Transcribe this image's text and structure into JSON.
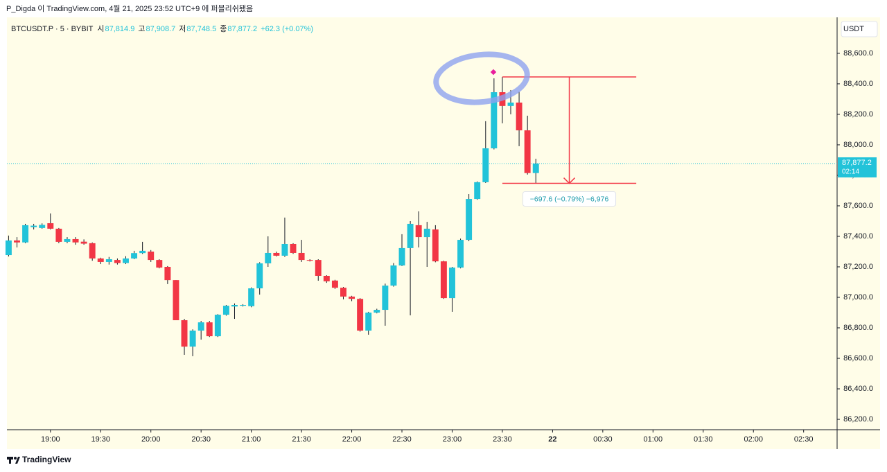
{
  "caption": "P_Digda 이 TradingView.com, 4월 21, 2025 23:52 UTC+9 에 퍼블리쉬됐음",
  "footer": "TradingView",
  "chart_data": {
    "type": "candlestick",
    "symbol_line": "BTCUSDT.P · 5 · BYBIT",
    "ohlc_header": [
      {
        "label": "시",
        "value": "87,814.9"
      },
      {
        "label": "고",
        "value": "87,908.7"
      },
      {
        "label": "저",
        "value": "87,748.5"
      },
      {
        "label": "종",
        "value": "87,877.2"
      }
    ],
    "change": "+62.3 (+0.07%)",
    "currency": "USDT",
    "up_color": "#22c3d9",
    "down_color": "#f23645",
    "x": [
      "18:35",
      "18:40",
      "18:45",
      "18:50",
      "18:55",
      "19:00",
      "19:05",
      "19:10",
      "19:15",
      "19:20",
      "19:25",
      "19:30",
      "19:35",
      "19:40",
      "19:45",
      "19:50",
      "19:55",
      "20:00",
      "20:05",
      "20:10",
      "20:15",
      "20:20",
      "20:25",
      "20:30",
      "20:35",
      "20:40",
      "20:45",
      "20:50",
      "20:55",
      "21:00",
      "21:05",
      "21:10",
      "21:15",
      "21:20",
      "21:25",
      "21:30",
      "21:35",
      "21:40",
      "21:45",
      "21:50",
      "21:55",
      "22:00",
      "22:05",
      "22:10",
      "22:15",
      "22:20",
      "22:25",
      "22:30",
      "22:35",
      "22:40",
      "22:45",
      "22:50",
      "22:55",
      "23:00",
      "23:05",
      "23:10",
      "23:15",
      "23:20",
      "23:25",
      "23:30",
      "23:35",
      "23:40",
      "23:45",
      "23:50"
    ],
    "open": [
      87277,
      87373,
      87360,
      87460,
      87455,
      87486,
      87450,
      87364,
      87382,
      87365,
      87355,
      87255,
      87232,
      87245,
      87225,
      87255,
      87290,
      87300,
      87245,
      87200,
      87113,
      86850,
      86677,
      86782,
      86836,
      86745,
      86886,
      86940,
      86945,
      86942,
      87059,
      87223,
      87291,
      87273,
      87350,
      87291,
      87245,
      87245,
      87141,
      87110,
      87063,
      87005,
      86990,
      86782,
      86900,
      86918,
      87077,
      87209,
      87323,
      87473,
      87395,
      87445,
      87236,
      86995,
      87195,
      87377,
      87645,
      87755,
      87977,
      88345,
      88255,
      88277,
      88095,
      87814.9
    ],
    "high": [
      87405,
      87395,
      87482,
      87482,
      87485,
      87550,
      87455,
      87395,
      87395,
      87380,
      87360,
      87260,
      87265,
      87255,
      87270,
      87305,
      87364,
      87310,
      87250,
      87205,
      87113,
      86859,
      86790,
      86845,
      86845,
      86890,
      86950,
      86960,
      86955,
      87065,
      87230,
      87400,
      87300,
      87523,
      87355,
      87377,
      87250,
      87250,
      87145,
      87115,
      87068,
      87010,
      86995,
      86905,
      86925,
      87090,
      87225,
      87414,
      87500,
      87564,
      87495,
      87473,
      87240,
      87200,
      87385,
      87677,
      87760,
      88155,
      88436,
      88445,
      88359,
      88350,
      88191,
      87908.7
    ],
    "low": [
      87268,
      87327,
      87355,
      87445,
      87450,
      87445,
      87355,
      87355,
      87345,
      87345,
      87240,
      87218,
      87215,
      87215,
      87218,
      87250,
      87285,
      87232,
      87190,
      87087,
      86850,
      86623,
      86614,
      86723,
      86740,
      86740,
      86880,
      86859,
      86940,
      86935,
      87018,
      87200,
      87268,
      87265,
      87285,
      87232,
      87235,
      87109,
      87095,
      87055,
      86987,
      86975,
      86775,
      86755,
      86895,
      86814,
      87070,
      87205,
      86882,
      87327,
      87200,
      87230,
      86990,
      86905,
      87190,
      87368,
      87640,
      87750,
      87970,
      88141,
      88200,
      87991,
      87805,
      87748.5
    ],
    "close": [
      87373,
      87360,
      87473,
      87470,
      87475,
      87450,
      87364,
      87382,
      87360,
      87352,
      87255,
      87232,
      87250,
      87225,
      87255,
      87290,
      87305,
      87245,
      87195,
      87113,
      86850,
      86677,
      86782,
      86836,
      86745,
      86886,
      86945,
      86950,
      86950,
      87059,
      87223,
      87291,
      87273,
      87350,
      87291,
      87245,
      87240,
      87141,
      87105,
      87063,
      87005,
      86990,
      86782,
      86900,
      86918,
      87077,
      87209,
      87323,
      87482,
      87395,
      87450,
      87236,
      86995,
      87195,
      87377,
      87645,
      87755,
      87977,
      88345,
      88255,
      88277,
      88095,
      87814.9,
      87877.2
    ],
    "xlim": [
      "18:34",
      "02:50"
    ],
    "xticks": [
      "19:00",
      "19:30",
      "20:00",
      "20:30",
      "21:00",
      "21:30",
      "22:00",
      "22:30",
      "23:00",
      "23:30",
      {
        "value": "00:00",
        "label": "22"
      },
      "00:30",
      "01:00",
      "01:30",
      "02:00",
      "02:30"
    ],
    "ylim": [
      86132,
      88836
    ],
    "yticks": [
      {
        "value": 86200,
        "label": "86,200.0"
      },
      {
        "value": 86400,
        "label": "86,400.0"
      },
      {
        "value": 86600,
        "label": "86,600.0"
      },
      {
        "value": 86800,
        "label": "86,800.0"
      },
      {
        "value": 87000,
        "label": "87,000.0"
      },
      {
        "value": 87200,
        "label": "87,200.0"
      },
      {
        "value": 87400,
        "label": "87,400.0"
      },
      {
        "value": 87600,
        "label": "87,600.0"
      },
      {
        "value": 87800,
        "label": "87,800.0"
      },
      {
        "value": 88000,
        "label": "88,000.0"
      },
      {
        "value": 88200,
        "label": "88,200.0"
      },
      {
        "value": 88400,
        "label": "88,400.0"
      },
      {
        "value": 88600,
        "label": "88,600.0"
      }
    ],
    "last_price": {
      "value": 87877.2,
      "label": "87,877.2",
      "countdown": "02:14"
    },
    "measure": {
      "from_price": 88445,
      "to_price": 87747.4,
      "from_time": "23:30",
      "to_time": "00:50",
      "label": "−697.6 (−0.79%) −6,976"
    }
  }
}
